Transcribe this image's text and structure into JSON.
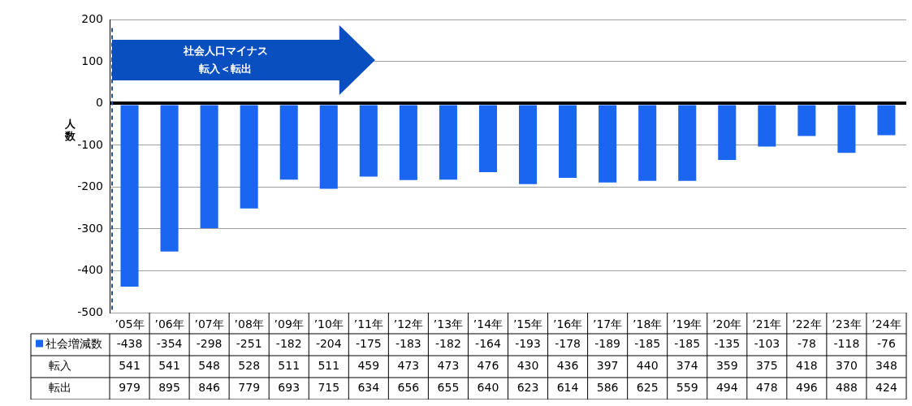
{
  "chart_data": {
    "type": "bar",
    "categories": [
      "’05年",
      "’06年",
      "’07年",
      "’08年",
      "’09年",
      "’10年",
      "’11年",
      "’12年",
      "’13年",
      "’14年",
      "’15年",
      "’16年",
      "’17年",
      "’18年",
      "’19年",
      "’20年",
      "’21年",
      "’22年",
      "’23年",
      "’24年"
    ],
    "series": [
      {
        "name": "社会増減数",
        "color": "#1a66f0",
        "values": [
          -438,
          -354,
          -298,
          -251,
          -182,
          -204,
          -175,
          -183,
          -182,
          -164,
          -193,
          -178,
          -189,
          -185,
          -185,
          -135,
          -103,
          -78,
          -118,
          -76
        ]
      },
      {
        "name": "転入",
        "values": [
          null,
          null,
          null,
          null,
          null,
          null,
          null,
          null,
          null,
          null,
          null,
          null,
          null,
          null,
          null,
          null,
          null,
          null,
          null,
          null
        ],
        "value_labels": [
          "541",
          "541",
          "548",
          "528",
          "511",
          "511",
          "459",
          "473",
          "473",
          "476",
          "430",
          "436",
          "397",
          "440",
          "374",
          "359",
          "375",
          "418",
          "370",
          "348"
        ]
      },
      {
        "name": "転出",
        "values": [
          null,
          null,
          null,
          null,
          null,
          null,
          null,
          null,
          null,
          null,
          null,
          null,
          null,
          null,
          null,
          null,
          null,
          null,
          null,
          null
        ],
        "value_labels": [
          "979",
          "895",
          "846",
          "779",
          "693",
          "715",
          "634",
          "656",
          "655",
          "640",
          "623",
          "614",
          "586",
          "625",
          "559",
          "494",
          "478",
          "496",
          "488",
          "424"
        ]
      }
    ],
    "ylabel": "人数",
    "ylim": [
      -500,
      200
    ],
    "yticks": [
      -500,
      -400,
      -300,
      -200,
      -100,
      0,
      100,
      200
    ],
    "grid": "y",
    "legend": "bottom left",
    "data_labels": true,
    "ref_lines": [
      {
        "axis": "x",
        "value": "’05年",
        "label": null,
        "color": "#1f4e9c",
        "line_style": "dashed"
      }
    ],
    "annotations": [
      "社会人口マイナス",
      "転入＜転出"
    ]
  }
}
